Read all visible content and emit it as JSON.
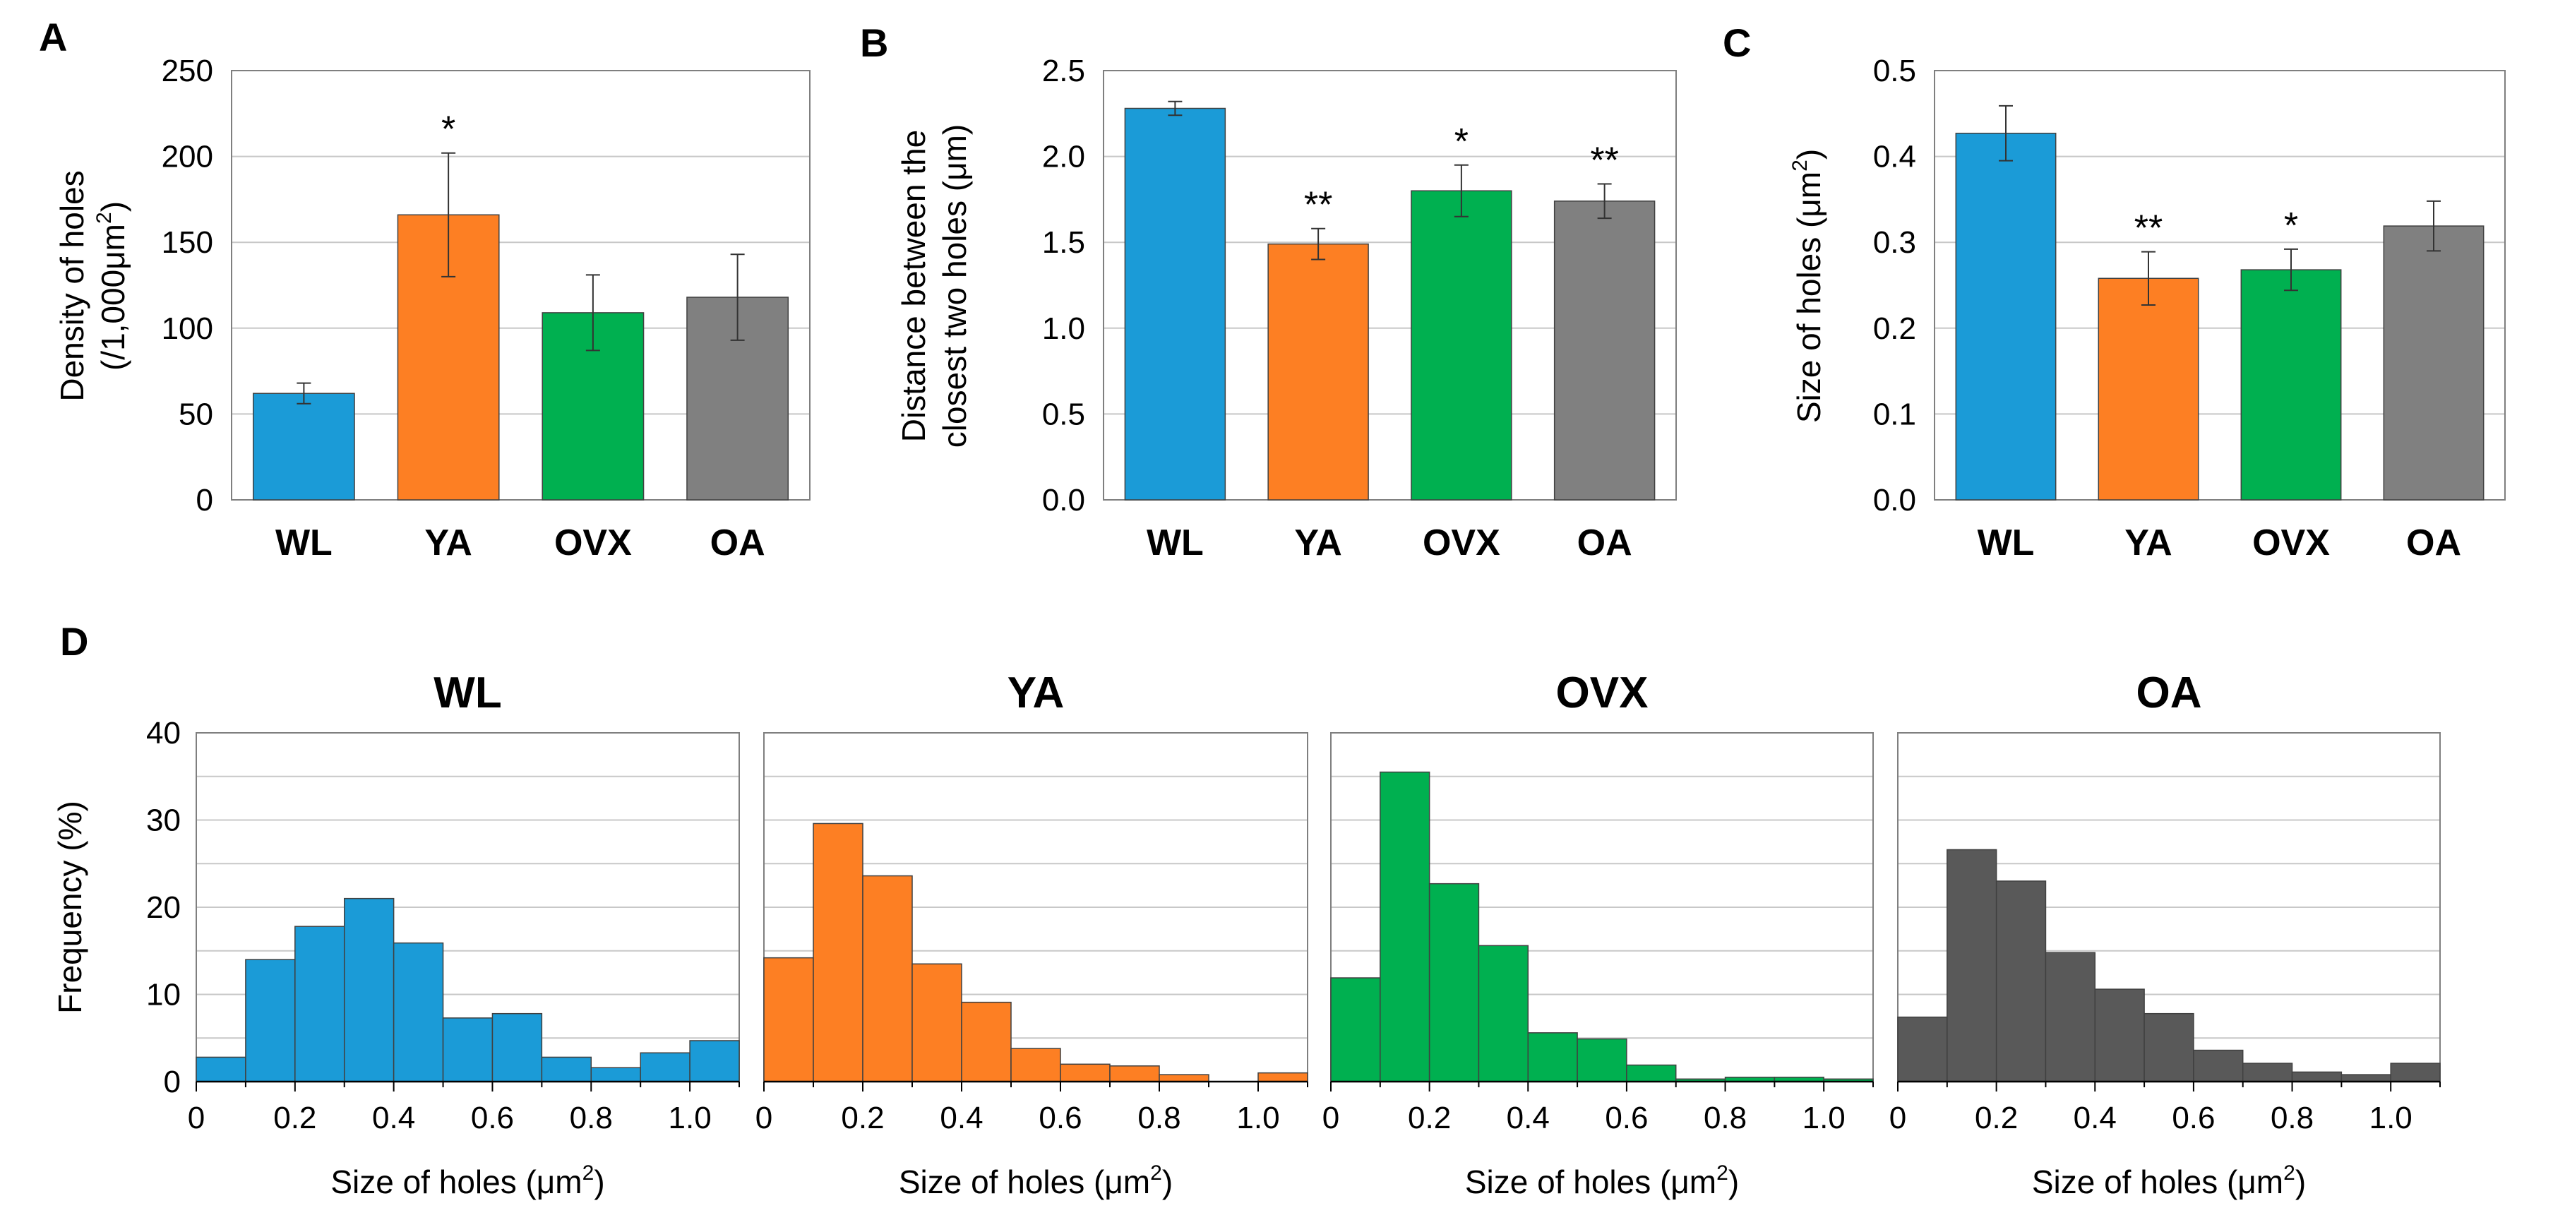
{
  "colors": {
    "WL": "#1b9bd7",
    "YA": "#fd7f23",
    "OVX": "#00b050",
    "OA": "#808080",
    "OA_hist": "#595959",
    "grid": "#c8c8c8",
    "axis": "#7f7f7f"
  },
  "chart_data": [
    {
      "id": "A",
      "type": "bar",
      "panel_label": "A",
      "categories": [
        "WL",
        "YA",
        "OVX",
        "OA"
      ],
      "values": [
        62,
        166,
        109,
        118
      ],
      "errors": [
        6,
        36,
        22,
        25
      ],
      "significance": [
        "",
        "*",
        "",
        ""
      ],
      "ylabel_lines": [
        "Density of holes",
        "(/1,000μm²)"
      ],
      "ylim": [
        0,
        250
      ],
      "yticks": [
        0,
        50,
        100,
        150,
        200,
        250
      ],
      "ytick_labels": [
        "0",
        "50",
        "100",
        "150",
        "200",
        "250"
      ],
      "grid": true
    },
    {
      "id": "B",
      "type": "bar",
      "panel_label": "B",
      "categories": [
        "WL",
        "YA",
        "OVX",
        "OA"
      ],
      "values": [
        2.28,
        1.49,
        1.8,
        1.74
      ],
      "errors": [
        0.04,
        0.09,
        0.15,
        0.1
      ],
      "significance": [
        "",
        "**",
        "*",
        "**"
      ],
      "ylabel_lines": [
        "Distance between the",
        "closest two holes (μm)"
      ],
      "ylim": [
        0,
        2.5
      ],
      "yticks": [
        0,
        0.5,
        1.0,
        1.5,
        2.0,
        2.5
      ],
      "ytick_labels": [
        "0.0",
        "0.5",
        "1.0",
        "1.5",
        "2.0",
        "2.5"
      ],
      "grid": true
    },
    {
      "id": "C",
      "type": "bar",
      "panel_label": "C",
      "categories": [
        "WL",
        "YA",
        "OVX",
        "OA"
      ],
      "values": [
        0.427,
        0.258,
        0.268,
        0.319
      ],
      "errors": [
        0.032,
        0.031,
        0.024,
        0.029
      ],
      "significance": [
        "",
        "**",
        "*",
        ""
      ],
      "ylabel_lines": [
        "Size of holes (μm²)"
      ],
      "ylim": [
        0,
        0.5
      ],
      "yticks": [
        0,
        0.1,
        0.2,
        0.3,
        0.4,
        0.5
      ],
      "ytick_labels": [
        "0.0",
        "0.1",
        "0.2",
        "0.3",
        "0.4",
        "0.5"
      ],
      "grid": true
    },
    {
      "id": "D",
      "type": "bar",
      "subtype": "histogram",
      "panel_label": "D",
      "ylabel": "Frequency (%)",
      "xlabel": "Size of holes (μm²)",
      "ylim": [
        0,
        40
      ],
      "yticks": [
        0,
        10,
        20,
        30,
        40
      ],
      "ytick_labels": [
        "0",
        "10",
        "20",
        "30",
        "40"
      ],
      "xlim": [
        0,
        1.1
      ],
      "xticks": [
        0,
        0.2,
        0.4,
        0.6,
        0.8,
        1.0
      ],
      "xtick_labels": [
        "0",
        "0.2",
        "0.4",
        "0.6",
        "0.8",
        "1.0"
      ],
      "bin_width": 0.1,
      "grid": true,
      "series": [
        {
          "name": "WL",
          "values": [
            2.8,
            14.0,
            17.8,
            21.0,
            15.9,
            7.3,
            7.8,
            2.8,
            1.6,
            3.3,
            4.7
          ]
        },
        {
          "name": "YA",
          "values": [
            14.2,
            29.6,
            23.6,
            13.5,
            9.1,
            3.8,
            2.0,
            1.8,
            0.8,
            0.0,
            1.0
          ]
        },
        {
          "name": "OVX",
          "values": [
            11.9,
            35.5,
            22.7,
            15.6,
            5.6,
            4.9,
            1.9,
            0.3,
            0.5,
            0.5,
            0.3
          ]
        },
        {
          "name": "OA",
          "values": [
            7.4,
            26.6,
            23.0,
            14.8,
            10.6,
            7.8,
            3.6,
            2.1,
            1.1,
            0.8,
            2.1
          ]
        }
      ]
    }
  ]
}
